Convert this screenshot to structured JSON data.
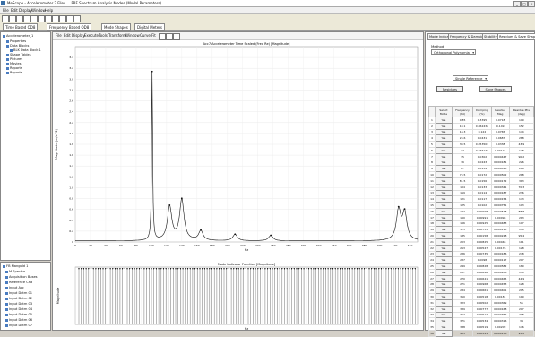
{
  "app": {
    "title": "MeScope - Accelerometer 2 Files ... FRF Spectrum Analysis Modes (Modal Parameters)"
  },
  "menu": [
    "File",
    "Edit",
    "Display",
    "Window",
    "Help"
  ],
  "tabs": [
    "Time Based OD8",
    "Frequency Based OD8",
    "Mode Shapes",
    "Digital Meters"
  ],
  "tree": {
    "root": "Accelerometer_1",
    "items": [
      "Properties",
      "Data Blocks",
      "BLK Data Block 1",
      "Shape Tables",
      "Pictures",
      "Movies",
      "Reports",
      "Reports"
    ],
    "bottom": [
      "FB Mangold 1",
      "M Spectra",
      "Acquisition Buses",
      "Reference Cha",
      "Input Acc",
      "Input Dotm 01",
      "Input Dotm 02",
      "Input Dotm 03",
      "Input Dotm 04",
      "Input Dotm 05",
      "Input Dotm 06",
      "Input Dotm 07"
    ]
  },
  "plot_toolbar": [
    "File",
    "Edit",
    "Display",
    "Execute",
    "Tools",
    "Transform",
    "Window",
    "Curve Fit"
  ],
  "side": {
    "tabs": [
      "Mode Indicator",
      "Frequency & Damping",
      "Stability",
      "Residues & Save Shapes"
    ],
    "method_label": "Method",
    "method_value": "Orthogonal Polynomial",
    "reference_value": "Single Reference",
    "residues_button": "Residues",
    "save_button": "Save Shapes",
    "columns": [
      "Select Mode",
      "Frequency (Hz)",
      "Damping (%)",
      "Residue Mag",
      "Residue Phs (deg)"
    ],
    "rows": [
      [
        "1",
        "Yes",
        "0.85",
        "0.3395",
        "0.0718",
        "199"
      ],
      [
        "2",
        "Yes",
        "10.1",
        "0.062432",
        "0.149",
        "152"
      ],
      [
        "3",
        "Yes",
        "18.3",
        "0.122",
        "0.0765",
        "174"
      ],
      [
        "4",
        "Yes",
        "23.6",
        "0.0431",
        "0.0687",
        "268"
      ],
      [
        "5",
        "Yes",
        "30.5",
        "0.053501",
        "0.0338",
        "43.9"
      ],
      [
        "6",
        "Yes",
        "34",
        "0.045174",
        "0.00121",
        "178"
      ],
      [
        "7",
        "Yes",
        "35",
        "0.0302",
        "0.000447",
        "90.2"
      ],
      [
        "8",
        "Yes",
        "36",
        "0.0243",
        "0.000181",
        "226"
      ],
      [
        "9",
        "Yes",
        "67",
        "0.0134",
        "0.000010",
        "268"
      ],
      [
        "10",
        "Yes",
        "73.5",
        "0.0172",
        "0.000502",
        "218"
      ],
      [
        "11",
        "Yes",
        "81.5",
        "0.0156",
        "0.000172",
        "313"
      ],
      [
        "12",
        "Yes",
        "104",
        "0.0133",
        "0.000341",
        "70.3"
      ],
      [
        "13",
        "Yes",
        "119",
        "0.0114",
        "0.000187",
        "236"
      ],
      [
        "14",
        "Yes",
        "121",
        "0.0117",
        "0.000154",
        "143"
      ],
      [
        "15",
        "Yes",
        "125",
        "0.0102",
        "0.000751",
        "103"
      ],
      [
        "16",
        "Yes",
        "144",
        "0.00998",
        "0.000528",
        "88.8"
      ],
      [
        "17",
        "Yes",
        "160",
        "0.00991",
        "0.00098",
        "213"
      ],
      [
        "18",
        "Yes",
        "166",
        "0.00925",
        "0.000483",
        "107"
      ],
      [
        "19",
        "Yes",
        "173",
        "0.00735",
        "0.000113",
        "174"
      ],
      [
        "20",
        "Yes",
        "185",
        "0.00158",
        "0.000228",
        "95.4"
      ],
      [
        "21",
        "Yes",
        "203",
        "0.00825",
        "0.00048",
        "111"
      ],
      [
        "22",
        "Yes",
        "213",
        "0.00547",
        "0.00176",
        "128"
      ],
      [
        "23",
        "Yes",
        "236",
        "0.00735",
        "0.000186",
        "248"
      ],
      [
        "24",
        "Yes",
        "237",
        "0.0098",
        "0.000117",
        "207"
      ],
      [
        "25",
        "Yes",
        "249",
        "0.00828",
        "0.000582",
        "189"
      ],
      [
        "26",
        "Yes",
        "267",
        "0.00646",
        "0.000206",
        "144"
      ],
      [
        "27",
        "Yes",
        "270",
        "0.00641",
        "0.000465",
        "44.9"
      ],
      [
        "28",
        "Yes",
        "271",
        "0.00968",
        "0.000453",
        "128"
      ],
      [
        "29",
        "Yes",
        "284",
        "0.00661",
        "0.000401",
        "295"
      ],
      [
        "30",
        "Yes",
        "310",
        "0.00518",
        "0.00181",
        "119"
      ],
      [
        "31",
        "Yes",
        "323",
        "0.00502",
        "0.000369",
        "55"
      ],
      [
        "32",
        "Yes",
        "339",
        "0.00777",
        "0.000168",
        "207"
      ],
      [
        "33",
        "Yes",
        "354",
        "0.00512",
        "0.000352",
        "208"
      ],
      [
        "34",
        "Yes",
        "371",
        "0.00534",
        "0.000316",
        "34"
      ],
      [
        "35",
        "Yes",
        "388",
        "0.00519",
        "0.00209",
        "176"
      ],
      [
        "36",
        "Yes",
        "403",
        "0.00341",
        "0.000138",
        "93.2"
      ]
    ]
  },
  "chart_data": [
    {
      "type": "line",
      "title": "Acc7 Accelerometer Time Scaled (Freq Re) [Magnitude]",
      "xlabel": "Hz",
      "ylabel": "Magnitude (m/s^2)",
      "xlim": [
        0,
        450
      ],
      "ylim": [
        0,
        3.6
      ],
      "xticks": [
        "0",
        "20",
        "40",
        "60",
        "80",
        "100",
        "120",
        "140",
        "160",
        "180",
        "200",
        "220",
        "240",
        "260",
        "280",
        "300",
        "320",
        "340",
        "360",
        "380",
        "400",
        "420",
        "440"
      ],
      "yticks": [
        "0",
        "0.2",
        "0.4",
        "0.6",
        "0.8",
        "1.0",
        "1.2",
        "1.4",
        "1.6",
        "1.8",
        "2.0",
        "2.2",
        "2.4",
        "2.6",
        "2.8",
        "3.0",
        "3.2",
        "3.4"
      ],
      "peaks": [
        {
          "x": 101,
          "y": 3.1
        },
        {
          "x": 124,
          "y": 0.62
        },
        {
          "x": 140,
          "y": 0.75
        },
        {
          "x": 165,
          "y": 0.18
        },
        {
          "x": 210,
          "y": 0.12
        },
        {
          "x": 257,
          "y": 0.1
        },
        {
          "x": 425,
          "y": 0.55
        },
        {
          "x": 433,
          "y": 0.5
        }
      ]
    },
    {
      "type": "line",
      "title": "Mode Indicator Function [Magnitude]",
      "xlabel": "Hz",
      "ylabel": "Magnitude"
    }
  ]
}
